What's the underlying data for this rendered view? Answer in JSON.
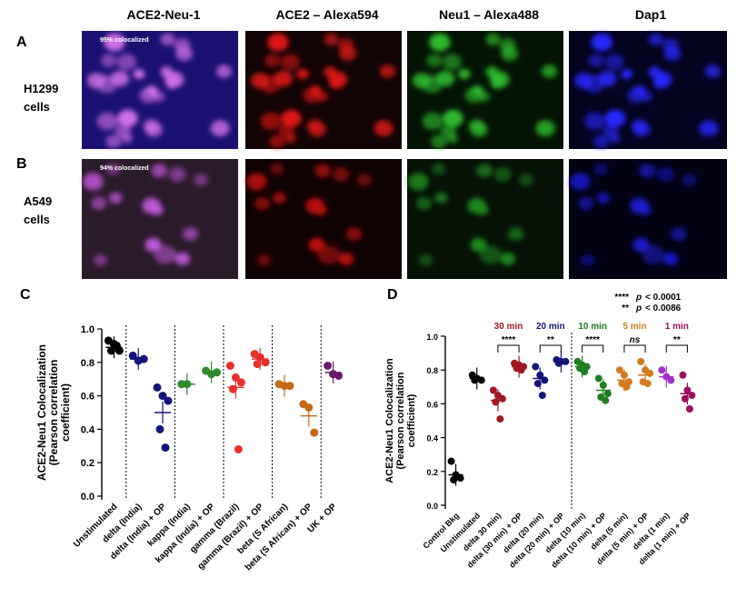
{
  "columns": [
    "ACE2-Neu-1",
    "ACE2 – Alexa594",
    "Neu1 – Alexa488",
    "Dap1"
  ],
  "rows": [
    {
      "letter": "A",
      "label_line1": "H1299",
      "label_line2": "cells",
      "coloc": "95% colocalized"
    },
    {
      "letter": "B",
      "label_line1": "A549",
      "label_line2": "cells",
      "coloc": "94% colocalized"
    }
  ],
  "colors": {
    "merge": "#7b3fd8",
    "red": "#cc1111",
    "green": "#22aa22",
    "blue": "#1a1aff",
    "black": "#000000",
    "navy": "#15157a",
    "darkgreen": "#2e8b2e",
    "orange": "#c46a18",
    "brightred": "#e8302a",
    "purple": "#6a1a6a",
    "darkred": "#a01822",
    "green2": "#1e7d1e",
    "orange2": "#d27a20",
    "violet": "#a030c8",
    "magenta": "#9a1060"
  },
  "chart_data": [
    {
      "panel": "C",
      "type": "scatter",
      "ylabel_lines": [
        "ACE2-Neu1 Colocalization",
        "(Pearson correlation",
        "coefficient)"
      ],
      "ylim": [
        0,
        1.0
      ],
      "yticks": [
        "0.0",
        "0.2",
        "0.4",
        "0.6",
        "0.8",
        "1.0"
      ],
      "groups": [
        {
          "label": "Unstimulated",
          "color": "black",
          "values": [
            0.93,
            0.91,
            0.87,
            0.87,
            0.9
          ],
          "mean": 0.89
        },
        {
          "label": "delta (India)",
          "color": "navy",
          "values": [
            0.84,
            0.81,
            0.82
          ],
          "mean": 0.82
        },
        {
          "label": "delta (India) + OP",
          "color": "navy",
          "values": [
            0.65,
            0.6,
            0.57,
            0.4,
            0.29
          ],
          "mean": 0.5
        },
        {
          "label": "kappa (India)",
          "color": "darkgreen",
          "values": [
            0.67,
            0.67
          ],
          "mean": 0.67
        },
        {
          "label": "kappa (India) + OP",
          "color": "darkgreen",
          "values": [
            0.75,
            0.73,
            0.74
          ],
          "mean": 0.74
        },
        {
          "label": "gamma (Brazil)",
          "color": "brightred",
          "values": [
            0.78,
            0.71,
            0.68,
            0.64,
            0.28
          ],
          "mean": 0.65
        },
        {
          "label": "gamma (Brazil) + OP",
          "color": "brightred",
          "values": [
            0.85,
            0.83,
            0.8,
            0.79
          ],
          "mean": 0.82
        },
        {
          "label": "beta (S African)",
          "color": "orange",
          "values": [
            0.67,
            0.66,
            0.66
          ],
          "mean": 0.66
        },
        {
          "label": "beta (S African) + OP",
          "color": "orange",
          "values": [
            0.55,
            0.53,
            0.38
          ],
          "mean": 0.48
        },
        {
          "label": "UK + OP",
          "color": "purple",
          "values": [
            0.78,
            0.73,
            0.72
          ],
          "mean": 0.74
        }
      ],
      "separators_after": [
        0,
        2,
        4,
        6,
        8
      ]
    },
    {
      "panel": "D",
      "type": "scatter",
      "ylabel_lines": [
        "ACE2-Neu1 Colocalization",
        "(Pearson correlation",
        "coefficient)"
      ],
      "ylim": [
        0,
        1.0
      ],
      "yticks": [
        "0.0",
        "0.2",
        "0.4",
        "0.6",
        "0.8",
        "1.0"
      ],
      "legend_lines": [
        {
          "stars": "****",
          "p": "p",
          "text": "< 0.0001"
        },
        {
          "stars": "**",
          "p": "p",
          "text": "< 0.0086"
        }
      ],
      "groups": [
        {
          "label": "Control Bkg",
          "color": "black",
          "values": [
            0.26,
            0.18,
            0.16,
            0.15
          ],
          "mean": 0.18
        },
        {
          "label": "Unstimulated",
          "color": "black",
          "values": [
            0.77,
            0.75,
            0.74,
            0.74
          ],
          "mean": 0.75
        },
        {
          "label": "delta 30 min)",
          "color": "darkred",
          "values": [
            0.68,
            0.65,
            0.63,
            0.61,
            0.51
          ],
          "mean": 0.62
        },
        {
          "label": "delta (30 min) + OP",
          "color": "darkred",
          "values": [
            0.84,
            0.83,
            0.82,
            0.81,
            0.8
          ],
          "mean": 0.82
        },
        {
          "label": "delta (20 min)",
          "color": "navy",
          "values": [
            0.82,
            0.77,
            0.74,
            0.72,
            0.65
          ],
          "mean": 0.75
        },
        {
          "label": "delta (20 min) + OP",
          "color": "navy",
          "values": [
            0.86,
            0.85,
            0.85,
            0.84
          ],
          "mean": 0.85
        },
        {
          "label": "delta (10 min)",
          "color": "green2",
          "values": [
            0.85,
            0.83,
            0.82,
            0.81,
            0.79
          ],
          "mean": 0.82
        },
        {
          "label": "delta (10 min) + OP",
          "color": "green2",
          "values": [
            0.75,
            0.71,
            0.66,
            0.64,
            0.62
          ],
          "mean": 0.68
        },
        {
          "label": "delta (5 min)",
          "color": "orange2",
          "values": [
            0.8,
            0.77,
            0.73,
            0.72,
            0.7
          ],
          "mean": 0.74
        },
        {
          "label": "delta (5 min) + OP",
          "color": "orange2",
          "values": [
            0.85,
            0.8,
            0.78,
            0.73,
            0.72
          ],
          "mean": 0.77
        },
        {
          "label": "delta (1 min)",
          "color": "violet",
          "values": [
            0.8,
            0.76,
            0.74
          ],
          "mean": 0.76
        },
        {
          "label": "delta (1 min) + OP",
          "color": "magenta",
          "values": [
            0.77,
            0.68,
            0.65,
            0.63,
            0.57
          ],
          "mean": 0.66
        }
      ],
      "separators_after": [
        5
      ],
      "comparisons": [
        {
          "pair": [
            2,
            3
          ],
          "time": "30 min",
          "sig": "****",
          "color": "darkred"
        },
        {
          "pair": [
            4,
            5
          ],
          "time": "20 min",
          "sig": "**",
          "color": "navy"
        },
        {
          "pair": [
            6,
            7
          ],
          "time": "10 min",
          "sig": "****",
          "color": "green2"
        },
        {
          "pair": [
            8,
            9
          ],
          "time": "5 min",
          "sig": "ns",
          "color": "orange2"
        },
        {
          "pair": [
            10,
            11
          ],
          "time": "1 min",
          "sig": "**",
          "color": "magenta"
        }
      ]
    }
  ]
}
